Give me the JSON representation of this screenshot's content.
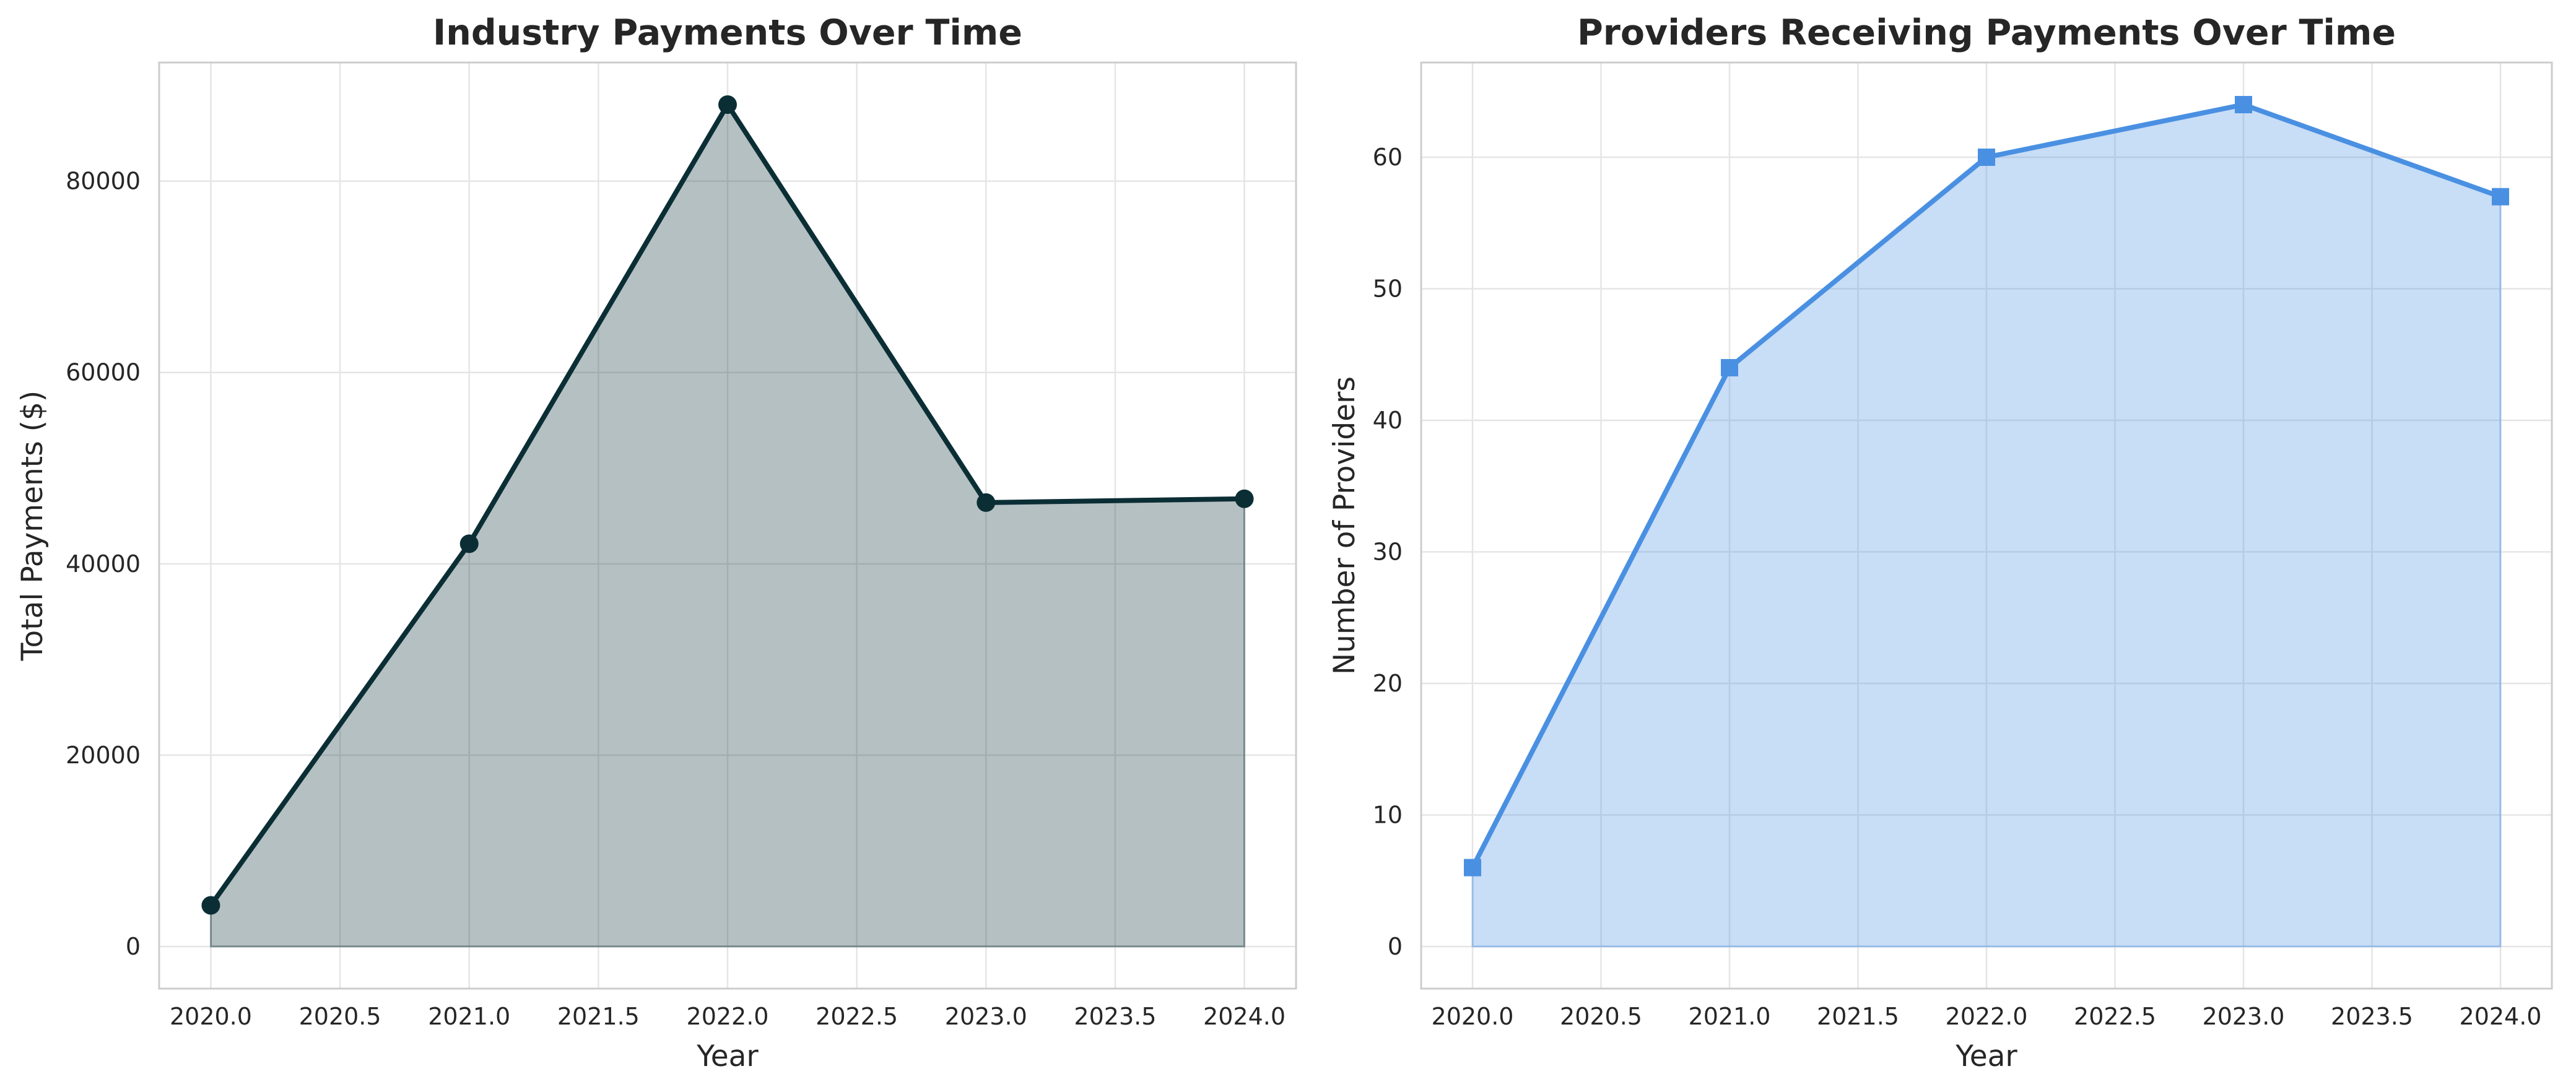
{
  "chart_data": [
    {
      "type": "area",
      "title": "Industry Payments Over Time",
      "xlabel": "Year",
      "ylabel": "Total Payments ($)",
      "x": [
        2020,
        2021,
        2022,
        2023,
        2024
      ],
      "values": [
        4300,
        42100,
        88000,
        46400,
        46800
      ],
      "xlim": [
        2019.8,
        2024.2
      ],
      "ylim": [
        -4400,
        92400
      ],
      "xticks": [
        2020.0,
        2020.5,
        2021.0,
        2021.5,
        2022.0,
        2022.5,
        2023.0,
        2023.5,
        2024.0
      ],
      "xtick_labels": [
        "2020.0",
        "2020.5",
        "2021.0",
        "2021.5",
        "2022.0",
        "2022.5",
        "2023.0",
        "2023.5",
        "2024.0"
      ],
      "yticks": [
        0,
        20000,
        40000,
        60000,
        80000
      ],
      "ytick_labels": [
        "0",
        "20000",
        "40000",
        "60000",
        "80000"
      ],
      "grid": true,
      "marker": "circle",
      "line_color": "#0b2e35",
      "fill_color": "#0b2e35"
    },
    {
      "type": "area",
      "title": "Providers Receiving Payments Over Time",
      "xlabel": "Year",
      "ylabel": "Number of Providers",
      "x": [
        2020,
        2021,
        2022,
        2023,
        2024
      ],
      "values": [
        6,
        44,
        60,
        64,
        57
      ],
      "xlim": [
        2019.8,
        2024.2
      ],
      "ylim": [
        -3.2,
        67.2
      ],
      "xticks": [
        2020.0,
        2020.5,
        2021.0,
        2021.5,
        2022.0,
        2022.5,
        2023.0,
        2023.5,
        2024.0
      ],
      "xtick_labels": [
        "2020.0",
        "2020.5",
        "2021.0",
        "2021.5",
        "2022.0",
        "2022.5",
        "2023.0",
        "2023.5",
        "2024.0"
      ],
      "yticks": [
        0,
        10,
        20,
        30,
        40,
        50,
        60
      ],
      "ytick_labels": [
        "0",
        "10",
        "20",
        "30",
        "40",
        "50",
        "60"
      ],
      "grid": true,
      "marker": "square",
      "line_color": "#4a90e2",
      "fill_color": "#4a90e2"
    }
  ]
}
